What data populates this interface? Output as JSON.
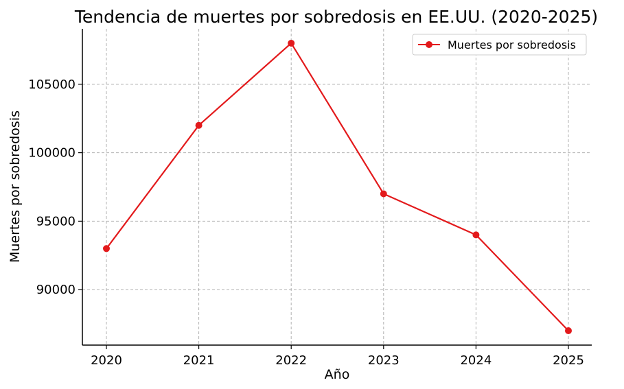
{
  "chart_data": {
    "type": "line",
    "title": "Tendencia de muertes por sobredosis en EE.UU. (2020-2025)",
    "xlabel": "Año",
    "ylabel": "Muertes por sobredosis",
    "x": [
      "2020",
      "2021",
      "2022",
      "2023",
      "2024",
      "2025"
    ],
    "series": [
      {
        "name": "Muertes por sobredosis",
        "color": "#e31a1c",
        "marker": "circle",
        "values": [
          93000,
          102000,
          108000,
          97000,
          94000,
          87000
        ]
      }
    ],
    "yticks": [
      "90000",
      "95000",
      "100000",
      "105000"
    ],
    "ylim": [
      85950,
      109050
    ],
    "grid": true,
    "legend": "top-right"
  }
}
